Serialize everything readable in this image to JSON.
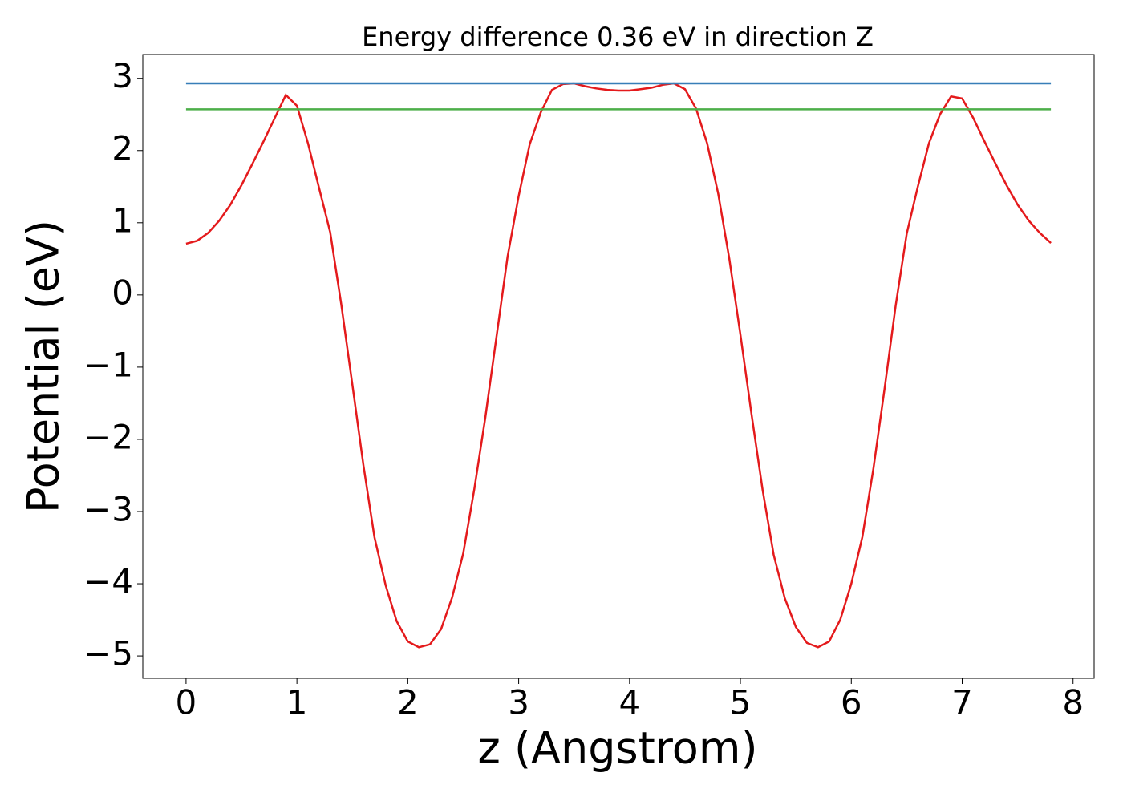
{
  "chart_data": {
    "type": "line",
    "title": "Energy difference 0.36 eV in direction Z",
    "x_label": "z (Angstrom)",
    "y_label": "Potential (eV)",
    "xlim": [
      -0.39,
      8.19
    ],
    "ylim": [
      -5.31,
      3.33
    ],
    "xticks": [
      0,
      1,
      2,
      3,
      4,
      5,
      6,
      7,
      8
    ],
    "yticks": [
      {
        "value": -5,
        "label": "−5"
      },
      {
        "value": -4,
        "label": "−4"
      },
      {
        "value": -3,
        "label": "−3"
      },
      {
        "value": -2,
        "label": "−2"
      },
      {
        "value": -1,
        "label": "−1"
      },
      0,
      1,
      2,
      3
    ],
    "grid": false,
    "series": [
      {
        "color": "#e41a1c",
        "x": [
          0,
          0.1,
          0.2,
          0.3,
          0.4,
          0.5,
          0.6,
          0.7,
          0.8,
          0.9,
          1.0,
          1.1,
          1.2,
          1.3,
          1.4,
          1.5,
          1.6,
          1.7,
          1.8,
          1.9,
          2.0,
          2.1,
          2.2,
          2.3,
          2.4,
          2.5,
          2.6,
          2.7,
          2.8,
          2.9,
          3.0,
          3.1,
          3.2,
          3.3,
          3.4,
          3.5,
          3.6,
          3.7,
          3.8,
          3.9,
          4.0,
          4.1,
          4.2,
          4.3,
          4.4,
          4.5,
          4.6,
          4.7,
          4.8,
          4.9,
          5.0,
          5.1,
          5.2,
          5.3,
          5.4,
          5.5,
          5.6,
          5.7,
          5.8,
          5.9,
          6.0,
          6.1,
          6.2,
          6.3,
          6.4,
          6.5,
          6.6,
          6.7,
          6.8,
          6.9,
          7.0,
          7.1,
          7.2,
          7.3,
          7.4,
          7.5,
          7.6,
          7.7,
          7.8
        ],
        "values": [
          0.71,
          0.75,
          0.86,
          1.03,
          1.25,
          1.52,
          1.82,
          2.13,
          2.45,
          2.77,
          2.62,
          2.1,
          1.48,
          0.87,
          -0.13,
          -1.24,
          -2.36,
          -3.36,
          -4.02,
          -4.52,
          -4.8,
          -4.88,
          -4.84,
          -4.63,
          -4.19,
          -3.58,
          -2.69,
          -1.69,
          -0.58,
          0.53,
          1.37,
          2.09,
          2.53,
          2.84,
          2.92,
          2.93,
          2.89,
          2.86,
          2.84,
          2.83,
          2.83,
          2.85,
          2.87,
          2.91,
          2.93,
          2.85,
          2.58,
          2.1,
          1.4,
          0.5,
          -0.55,
          -1.65,
          -2.7,
          -3.6,
          -4.2,
          -4.6,
          -4.82,
          -4.88,
          -4.8,
          -4.5,
          -4.0,
          -3.35,
          -2.4,
          -1.3,
          -0.15,
          0.85,
          1.5,
          2.1,
          2.5,
          2.75,
          2.72,
          2.45,
          2.13,
          1.82,
          1.52,
          1.25,
          1.03,
          0.86,
          0.72
        ]
      },
      {
        "color": "#377eb8",
        "x": [
          0,
          7.8
        ],
        "values": [
          2.93,
          2.93
        ]
      },
      {
        "color": "#4daf4a",
        "x": [
          0,
          7.8
        ],
        "values": [
          2.57,
          2.57
        ]
      }
    ]
  }
}
